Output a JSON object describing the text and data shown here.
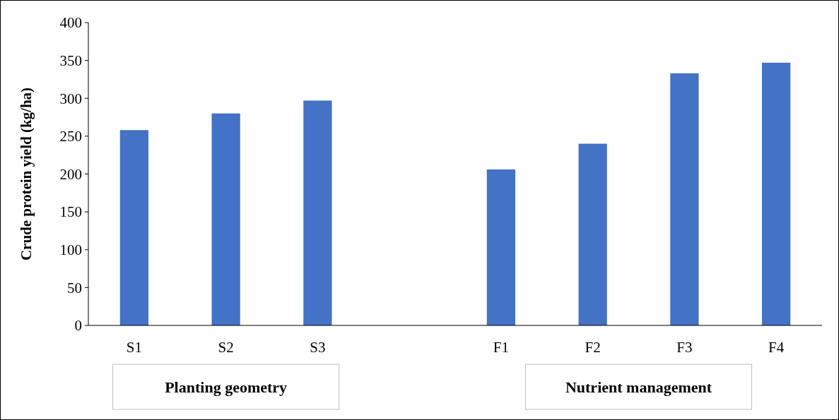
{
  "chart_data": {
    "type": "bar",
    "ylabel": "Crude protein yield (kg/ha)",
    "categories": [
      "S1",
      "S2",
      "S3",
      null,
      "F1",
      "F2",
      "F3",
      "F4"
    ],
    "values": [
      258,
      280,
      297,
      null,
      206,
      240,
      333,
      347
    ],
    "color": "#4472c4",
    "ylim": [
      0,
      400
    ],
    "yticks": [
      0,
      50,
      100,
      150,
      200,
      250,
      300,
      350,
      400
    ],
    "grid": false,
    "annotations": [
      "Planting geometry",
      "Nutrient management"
    ]
  }
}
